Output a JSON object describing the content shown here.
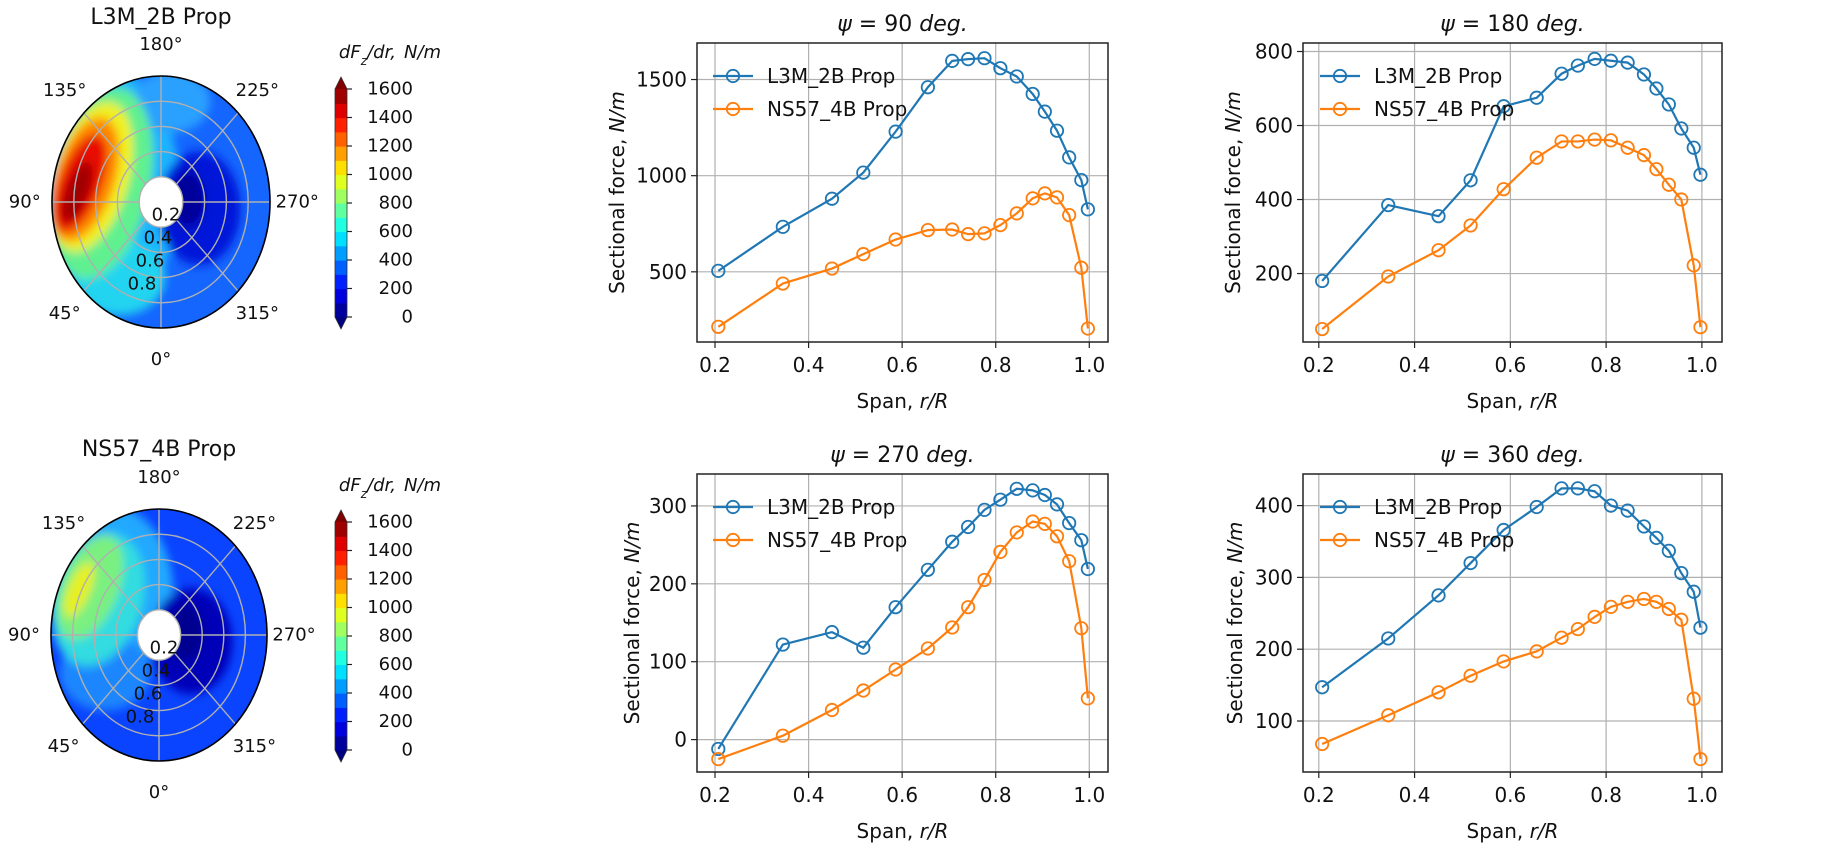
{
  "colors": {
    "series_1": "#1f77b4",
    "series_2": "#ff7f0e",
    "grid": "#b0b0b0",
    "axis": "#222222"
  },
  "chart_data": [
    {
      "type": "heatmap",
      "subtype": "polar-contour",
      "title": "L3M_2B Prop",
      "angle_labels": [
        "0°",
        "45°",
        "90°",
        "135°",
        "180°",
        "225°",
        "270°",
        "315°"
      ],
      "angles_deg": [
        0,
        45,
        90,
        135,
        180,
        225,
        270,
        315
      ],
      "radial_ticks": [
        0.2,
        0.4,
        0.6,
        0.8
      ],
      "radial_labels": [
        "0.2",
        "0.4",
        "0.6",
        "0.8"
      ],
      "colorbar": {
        "label_main": "dF",
        "label_sub": "z",
        "label_tail": "/dr,",
        "label_unit": "N/m",
        "range": [
          0,
          1600
        ],
        "ticks": [
          0,
          200,
          400,
          600,
          800,
          1000,
          1200,
          1400,
          1600
        ],
        "tick_labels": [
          "0",
          "200",
          "400",
          "600",
          "800",
          "1000",
          "1200",
          "1400",
          "1600"
        ],
        "colormap": "jet",
        "level_step": 100
      }
    },
    {
      "type": "heatmap",
      "subtype": "polar-contour",
      "title": "NS57_4B Prop",
      "angle_labels": [
        "0°",
        "45°",
        "90°",
        "135°",
        "180°",
        "225°",
        "270°",
        "315°"
      ],
      "angles_deg": [
        0,
        45,
        90,
        135,
        180,
        225,
        270,
        315
      ],
      "radial_ticks": [
        0.2,
        0.4,
        0.6,
        0.8
      ],
      "radial_labels": [
        "0.2",
        "0.4",
        "0.6",
        "0.8"
      ],
      "colorbar": {
        "label_main": "dF",
        "label_sub": "z",
        "label_tail": "/dr,",
        "label_unit": "N/m",
        "range": [
          0,
          1600
        ],
        "ticks": [
          0,
          200,
          400,
          600,
          800,
          1000,
          1200,
          1400,
          1600
        ],
        "tick_labels": [
          "0",
          "200",
          "400",
          "600",
          "800",
          "1000",
          "1200",
          "1400",
          "1600"
        ],
        "colormap": "jet",
        "level_step": 100
      }
    },
    {
      "type": "line",
      "title": {
        "symbol": "ψ",
        "value": " = 90 ",
        "unit": "deg."
      },
      "xlabel": {
        "text": "Span, ",
        "italic": "r/R"
      },
      "ylabel": {
        "text": "Sectional force, ",
        "italic": "N/m"
      },
      "xlim": [
        0.1615,
        1.04
      ],
      "ylim": [
        135,
        1690
      ],
      "xticks": [
        0.2,
        0.4,
        0.6,
        0.8,
        1.0
      ],
      "xtick_labels": [
        "0.2",
        "0.4",
        "0.6",
        "0.8",
        "1.0"
      ],
      "yticks": [
        500,
        1000,
        1500
      ],
      "ytick_labels": [
        "500",
        "1000",
        "1500"
      ],
      "grid": true,
      "legend": "top-left",
      "x": [
        0.207,
        0.345,
        0.45,
        0.517,
        0.586,
        0.655,
        0.707,
        0.741,
        0.776,
        0.81,
        0.845,
        0.879,
        0.905,
        0.931,
        0.957,
        0.983,
        0.997
      ],
      "series": [
        {
          "name": "L3M_2B Prop",
          "values": [
            505,
            734,
            880,
            1016,
            1229,
            1460,
            1597,
            1606,
            1611,
            1559,
            1516,
            1425,
            1333,
            1234,
            1095,
            977,
            825
          ]
        },
        {
          "name": "NS57_4B Prop",
          "values": [
            214,
            439,
            517,
            592,
            668,
            717,
            720,
            696,
            700,
            743,
            804,
            882,
            908,
            887,
            795,
            521,
            205
          ]
        }
      ]
    },
    {
      "type": "line",
      "title": {
        "symbol": "ψ",
        "value": " = 180 ",
        "unit": "deg."
      },
      "xlabel": {
        "text": "Span, ",
        "italic": "r/R"
      },
      "ylabel": {
        "text": "Sectional force, ",
        "italic": "N/m"
      },
      "xlim": [
        0.167,
        1.042
      ],
      "ylim": [
        15,
        823
      ],
      "xticks": [
        0.2,
        0.4,
        0.6,
        0.8,
        1.0
      ],
      "xtick_labels": [
        "0.2",
        "0.4",
        "0.6",
        "0.8",
        "1.0"
      ],
      "yticks": [
        200,
        400,
        600,
        800
      ],
      "ytick_labels": [
        "200",
        "400",
        "600",
        "800"
      ],
      "grid": true,
      "legend": "top-left",
      "x": [
        0.207,
        0.345,
        0.45,
        0.517,
        0.586,
        0.655,
        0.707,
        0.741,
        0.776,
        0.81,
        0.845,
        0.879,
        0.905,
        0.931,
        0.957,
        0.983,
        0.997
      ],
      "series": [
        {
          "name": "L3M_2B Prop",
          "values": [
            180,
            385,
            355,
            452,
            652,
            675,
            740,
            762,
            780,
            775,
            770,
            738,
            700,
            657,
            592,
            540,
            467
          ]
        },
        {
          "name": "NS57_4B Prop",
          "values": [
            50,
            192,
            263,
            330,
            428,
            513,
            557,
            557,
            562,
            560,
            540,
            520,
            482,
            440,
            400,
            222,
            55
          ]
        }
      ]
    },
    {
      "type": "line",
      "title": {
        "symbol": "ψ",
        "value": " = 270 ",
        "unit": "deg."
      },
      "xlabel": {
        "text": "Span, ",
        "italic": "r/R"
      },
      "ylabel": {
        "text": "Sectional force, ",
        "italic": "N/m"
      },
      "xlim": [
        0.1615,
        1.04
      ],
      "ylim": [
        -41.6,
        341
      ],
      "xticks": [
        0.2,
        0.4,
        0.6,
        0.8,
        1.0
      ],
      "xtick_labels": [
        "0.2",
        "0.4",
        "0.6",
        "0.8",
        "1.0"
      ],
      "yticks": [
        0,
        100,
        200,
        300
      ],
      "ytick_labels": [
        "0",
        "100",
        "200",
        "300"
      ],
      "grid": true,
      "legend": "top-left",
      "x": [
        0.207,
        0.345,
        0.45,
        0.517,
        0.586,
        0.655,
        0.707,
        0.741,
        0.776,
        0.81,
        0.845,
        0.879,
        0.905,
        0.931,
        0.957,
        0.983,
        0.997
      ],
      "series": [
        {
          "name": "L3M_2B Prop",
          "values": [
            -12,
            122,
            138,
            118,
            170,
            218,
            254,
            273,
            295,
            308,
            322,
            320,
            314,
            302,
            278,
            256,
            219
          ]
        },
        {
          "name": "NS57_4B Prop",
          "values": [
            -25,
            5,
            38,
            63,
            90,
            117,
            144,
            170,
            205,
            241,
            266,
            280,
            277,
            261,
            229,
            143,
            53
          ]
        }
      ]
    },
    {
      "type": "line",
      "title": {
        "symbol": "ψ",
        "value": " = 360 ",
        "unit": "deg."
      },
      "xlabel": {
        "text": "Span, ",
        "italic": "r/R"
      },
      "ylabel": {
        "text": "Sectional force, ",
        "italic": "N/m"
      },
      "xlim": [
        0.167,
        1.042
      ],
      "ylim": [
        29,
        444
      ],
      "xticks": [
        0.2,
        0.4,
        0.6,
        0.8,
        1.0
      ],
      "xtick_labels": [
        "0.2",
        "0.4",
        "0.6",
        "0.8",
        "1.0"
      ],
      "yticks": [
        100,
        200,
        300,
        400
      ],
      "ytick_labels": [
        "100",
        "200",
        "300",
        "400"
      ],
      "grid": true,
      "legend": "top-left",
      "x": [
        0.207,
        0.345,
        0.45,
        0.517,
        0.586,
        0.655,
        0.707,
        0.741,
        0.776,
        0.81,
        0.845,
        0.879,
        0.905,
        0.931,
        0.957,
        0.983,
        0.997
      ],
      "series": [
        {
          "name": "L3M_2B Prop",
          "values": [
            147,
            215,
            275,
            320,
            366,
            398,
            424,
            424,
            420,
            400,
            393,
            371,
            355,
            337,
            306,
            280,
            230
          ]
        },
        {
          "name": "NS57_4B Prop",
          "values": [
            68,
            108,
            140,
            163,
            183,
            197,
            216,
            228,
            245,
            259,
            266,
            270,
            266,
            256,
            241,
            131,
            47
          ]
        }
      ]
    }
  ]
}
